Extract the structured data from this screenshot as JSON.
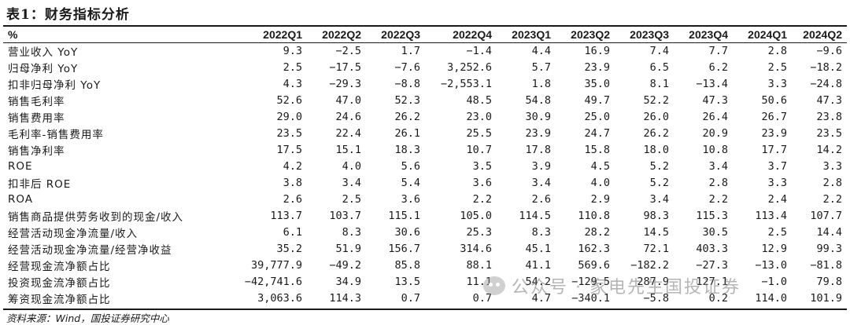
{
  "title": "表1：财务指标分析",
  "table": {
    "headers": [
      "%",
      "2022Q1",
      "2022Q2",
      "2022Q3",
      "2022Q4",
      "2023Q1",
      "2023Q2",
      "2023Q3",
      "2023Q4",
      "2024Q1",
      "2024Q2"
    ],
    "rows": [
      {
        "label": "营业收入 YoY",
        "values": [
          "9.3",
          "−2.5",
          "1.7",
          "−1.4",
          "4.4",
          "16.9",
          "7.4",
          "7.7",
          "2.8",
          "−9.6"
        ]
      },
      {
        "label": "归母净利 YoY",
        "values": [
          "2.5",
          "−17.5",
          "−7.6",
          "3,252.6",
          "5.7",
          "23.9",
          "6.5",
          "6.2",
          "2.5",
          "−18.2"
        ]
      },
      {
        "label": "扣非归母净利 YoY",
        "values": [
          "4.3",
          "−29.3",
          "−8.8",
          "−2,553.1",
          "1.8",
          "35.0",
          "8.1",
          "−13.4",
          "3.3",
          "−24.8"
        ]
      },
      {
        "label": "销售毛利率",
        "values": [
          "52.6",
          "47.0",
          "52.3",
          "48.5",
          "54.8",
          "49.7",
          "52.2",
          "47.3",
          "50.6",
          "47.3"
        ]
      },
      {
        "label": "销售费用率",
        "values": [
          "29.0",
          "24.6",
          "26.2",
          "23.0",
          "30.9",
          "25.0",
          "26.0",
          "26.4",
          "26.7",
          "23.8"
        ]
      },
      {
        "label": "毛利率-销售费用率",
        "values": [
          "23.5",
          "22.4",
          "26.1",
          "25.5",
          "23.9",
          "24.7",
          "26.2",
          "20.9",
          "23.9",
          "23.5"
        ]
      },
      {
        "label": "销售净利率",
        "values": [
          "17.5",
          "15.1",
          "18.3",
          "10.7",
          "17.8",
          "15.8",
          "18.0",
          "10.8",
          "17.7",
          "14.2"
        ]
      },
      {
        "label": "ROE",
        "values": [
          "4.2",
          "4.0",
          "5.6",
          "3.5",
          "3.9",
          "4.5",
          "5.2",
          "3.4",
          "3.7",
          "3.3"
        ]
      },
      {
        "label": "扣非后 ROE",
        "values": [
          "3.8",
          "3.4",
          "5.4",
          "3.6",
          "3.4",
          "4.0",
          "5.2",
          "2.8",
          "3.3",
          "2.8"
        ]
      },
      {
        "label": "ROA",
        "values": [
          "2.6",
          "2.5",
          "3.6",
          "2.2",
          "2.6",
          "2.9",
          "3.4",
          "2.2",
          "2.4",
          "2.2"
        ]
      },
      {
        "label": "销售商品提供劳务收到的现金/收入",
        "values": [
          "113.7",
          "103.7",
          "115.1",
          "105.0",
          "114.5",
          "110.8",
          "98.3",
          "115.3",
          "113.4",
          "107.7"
        ]
      },
      {
        "label": "经营活动现金净流量/收入",
        "values": [
          "6.1",
          "8.3",
          "30.6",
          "25.3",
          "8.3",
          "28.2",
          "14.5",
          "30.5",
          "2.5",
          "14.4"
        ]
      },
      {
        "label": "经营活动现金净流量/经营净收益",
        "values": [
          "35.2",
          "51.9",
          "156.7",
          "314.6",
          "45.1",
          "162.3",
          "72.1",
          "403.3",
          "12.9",
          "99.3"
        ]
      },
      {
        "label": "经营现金流净额占比",
        "values": [
          "39,777.9",
          "−49.2",
          "85.8",
          "88.1",
          "41.1",
          "569.6",
          "−182.2",
          "−27.3",
          "−13.0",
          "−81.8"
        ]
      },
      {
        "label": "投资现金流净额占比",
        "values": [
          "−42,741.6",
          "34.9",
          "13.5",
          "11.1",
          "54.2",
          "−129.5",
          "287.9",
          "127.1",
          "−1.0",
          "79.8"
        ]
      },
      {
        "label": "筹资现金流净额占比",
        "values": [
          "3,063.6",
          "114.3",
          "0.7",
          "0.7",
          "4.7",
          "−340.1",
          "−5.8",
          "0.2",
          "114.0",
          "101.9"
        ]
      }
    ]
  },
  "source": "资料来源：Wind，国投证券研究中心",
  "watermark": {
    "text": "公众号 · 家电先生国投证券",
    "icon": "wechat-icon"
  }
}
